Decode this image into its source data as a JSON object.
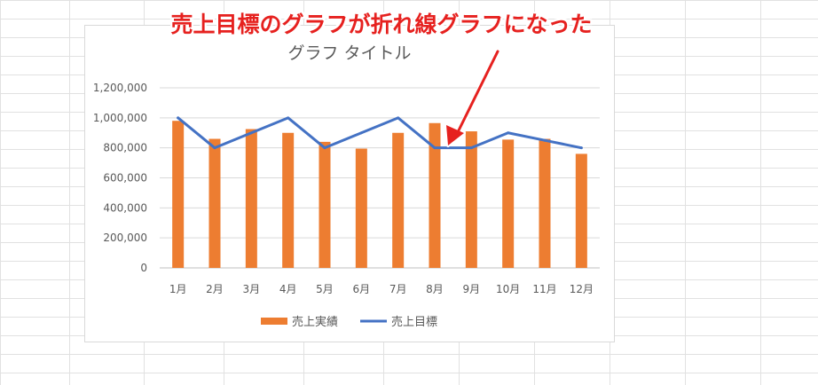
{
  "annotation": {
    "text": "売上目標のグラフが折れ線グラフになった",
    "color": "#e6211f"
  },
  "chart_data": {
    "type": "bar",
    "title": "グラフ タイトル",
    "categories": [
      "1月",
      "2月",
      "3月",
      "4月",
      "5月",
      "6月",
      "7月",
      "8月",
      "9月",
      "10月",
      "11月",
      "12月"
    ],
    "series": [
      {
        "name": "売上実績",
        "type": "bar",
        "color": "#ed7d31",
        "values": [
          980000,
          860000,
          925000,
          900000,
          840000,
          795000,
          900000,
          965000,
          910000,
          855000,
          860000,
          760000
        ]
      },
      {
        "name": "売上目標",
        "type": "line",
        "color": "#4472c4",
        "values": [
          1000000,
          800000,
          900000,
          1000000,
          800000,
          900000,
          1000000,
          800000,
          800000,
          900000,
          850000,
          800000
        ]
      }
    ],
    "ylim": [
      0,
      1200000
    ],
    "yticks": [
      0,
      200000,
      400000,
      600000,
      800000,
      1000000,
      1200000
    ],
    "ytick_labels": [
      "0",
      "200,000",
      "400,000",
      "600,000",
      "800,000",
      "1,000,000",
      "1,200,000"
    ],
    "grid": true,
    "legend": "bottom"
  },
  "colors": {
    "bar": "#ed7d31",
    "line": "#4472c4",
    "arrow": "#e6211f",
    "grid": "#d9d9d9"
  }
}
